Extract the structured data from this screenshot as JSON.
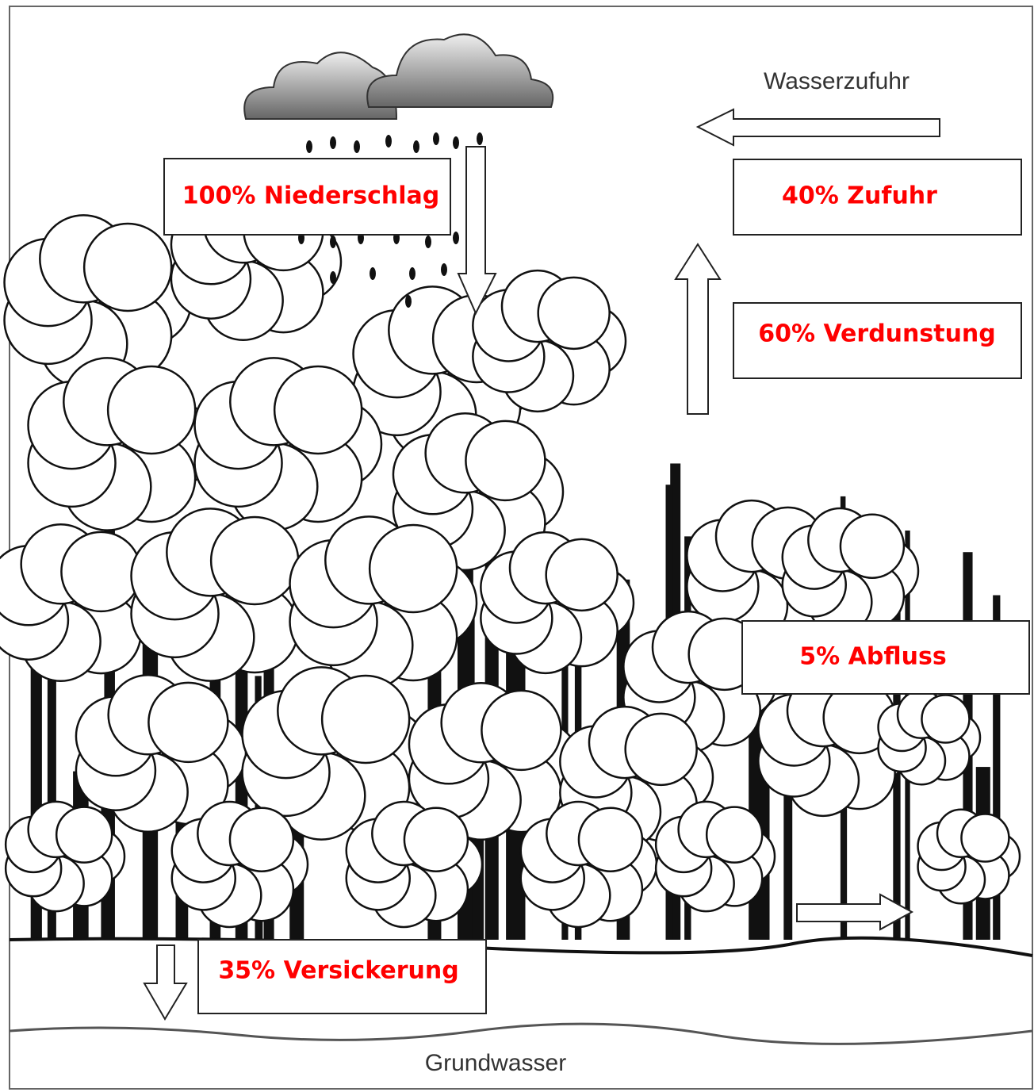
{
  "labels": {
    "inflow": "Wasserzufuhr",
    "groundwater": "Grundwasser"
  },
  "boxes": [
    "100% Niederschlag",
    "40% Zufuhr",
    "60% Verdunstung",
    "5% Abfluss",
    "35% Versickerung"
  ]
}
